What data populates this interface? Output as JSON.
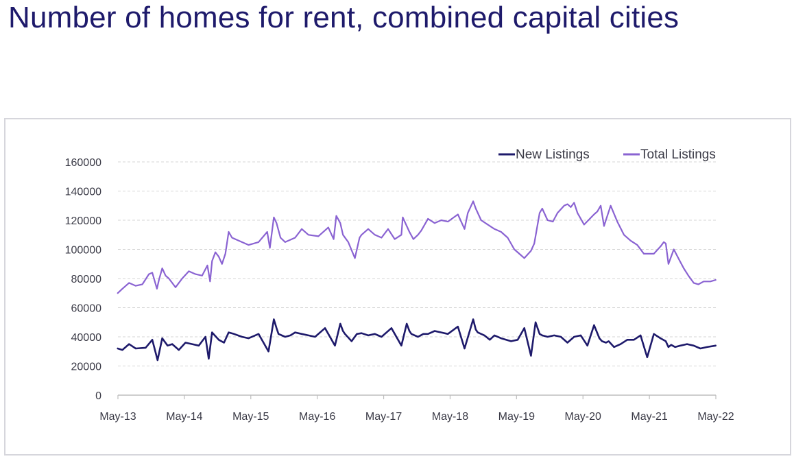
{
  "page": {
    "title": "Number of homes for rent, combined capital cities"
  },
  "colors": {
    "new_listings": "#1e1a6b",
    "total_listings": "#8a63d2",
    "grid": "#d4d4d4",
    "axis": "#bdbdbd",
    "frame": "#d6d6dc"
  },
  "chart_data": {
    "type": "line",
    "title": "Number of homes for rent, combined capital cities",
    "xlabel": "",
    "ylabel": "",
    "ylim": [
      0,
      160000
    ],
    "yticks": [
      0,
      20000,
      40000,
      60000,
      80000,
      100000,
      120000,
      140000,
      160000
    ],
    "x_tick_labels": [
      "May-13",
      "May-14",
      "May-15",
      "May-16",
      "May-17",
      "May-18",
      "May-19",
      "May-20",
      "May-21",
      "May-22"
    ],
    "x_range": [
      2013.333,
      2022.333
    ],
    "legend": {
      "position": "top-right"
    },
    "grid": true,
    "series": [
      {
        "name": "New Listings",
        "x": [
          2013.33,
          2013.4,
          2013.5,
          2013.6,
          2013.75,
          2013.85,
          2013.93,
          2014.0,
          2014.08,
          2014.15,
          2014.25,
          2014.35,
          2014.45,
          2014.55,
          2014.65,
          2014.7,
          2014.75,
          2014.85,
          2014.93,
          2015.0,
          2015.08,
          2015.2,
          2015.3,
          2015.45,
          2015.6,
          2015.68,
          2015.72,
          2015.75,
          2015.85,
          2015.93,
          2016.0,
          2016.1,
          2016.2,
          2016.3,
          2016.45,
          2016.6,
          2016.68,
          2016.72,
          2016.75,
          2016.85,
          2016.93,
          2017.0,
          2017.1,
          2017.2,
          2017.3,
          2017.45,
          2017.6,
          2017.68,
          2017.72,
          2017.75,
          2017.85,
          2017.93,
          2018.0,
          2018.1,
          2018.2,
          2018.3,
          2018.45,
          2018.55,
          2018.68,
          2018.72,
          2018.75,
          2018.85,
          2018.93,
          2019.0,
          2019.1,
          2019.25,
          2019.35,
          2019.45,
          2019.55,
          2019.62,
          2019.68,
          2019.72,
          2019.8,
          2019.9,
          2020.0,
          2020.1,
          2020.2,
          2020.3,
          2020.4,
          2020.5,
          2020.58,
          2020.62,
          2020.68,
          2020.72,
          2020.8,
          2020.9,
          2021.0,
          2021.1,
          2021.2,
          2021.3,
          2021.4,
          2021.5,
          2021.58,
          2021.62,
          2021.66,
          2021.72,
          2021.8,
          2021.9,
          2022.0,
          2022.1,
          2022.2,
          2022.33
        ],
        "values": [
          32000,
          31000,
          35000,
          32000,
          32500,
          38000,
          24000,
          39000,
          34000,
          35000,
          31000,
          36000,
          35000,
          34000,
          40000,
          25000,
          43000,
          38000,
          36000,
          43000,
          42000,
          40000,
          39000,
          42000,
          30000,
          52000,
          46000,
          42000,
          40000,
          41000,
          43000,
          42000,
          41000,
          40000,
          46000,
          34000,
          49000,
          44000,
          42000,
          37000,
          42000,
          42500,
          41000,
          42000,
          40000,
          46000,
          34000,
          49000,
          44000,
          42000,
          40000,
          42000,
          42000,
          44000,
          43000,
          42000,
          47000,
          32000,
          52000,
          45000,
          43000,
          41000,
          38000,
          41000,
          39000,
          37000,
          38000,
          46000,
          27000,
          50000,
          42000,
          41000,
          40000,
          41000,
          40000,
          36000,
          40000,
          41000,
          34000,
          48000,
          39000,
          37000,
          36000,
          37000,
          33000,
          35000,
          38000,
          38000,
          41000,
          26000,
          42000,
          39000,
          37000,
          33000,
          34500,
          33000,
          34000,
          35000,
          34000,
          32000,
          33000,
          34000
        ]
      },
      {
        "name": "Total Listings",
        "x": [
          2013.33,
          2013.4,
          2013.5,
          2013.6,
          2013.7,
          2013.8,
          2013.85,
          2013.92,
          2013.95,
          2014.0,
          2014.05,
          2014.1,
          2014.2,
          2014.3,
          2014.4,
          2014.5,
          2014.6,
          2014.68,
          2014.72,
          2014.75,
          2014.8,
          2014.85,
          2014.9,
          2014.95,
          2015.0,
          2015.05,
          2015.15,
          2015.3,
          2015.45,
          2015.58,
          2015.62,
          2015.68,
          2015.72,
          2015.78,
          2015.85,
          2015.9,
          2016.0,
          2016.1,
          2016.2,
          2016.35,
          2016.5,
          2016.58,
          2016.62,
          2016.68,
          2016.72,
          2016.8,
          2016.9,
          2016.97,
          2017.0,
          2017.1,
          2017.2,
          2017.3,
          2017.4,
          2017.5,
          2017.6,
          2017.62,
          2017.68,
          2017.72,
          2017.78,
          2017.85,
          2017.9,
          2018.0,
          2018.1,
          2018.2,
          2018.3,
          2018.45,
          2018.55,
          2018.6,
          2018.68,
          2018.72,
          2018.8,
          2018.9,
          2019.0,
          2019.1,
          2019.2,
          2019.3,
          2019.4,
          2019.45,
          2019.55,
          2019.6,
          2019.68,
          2019.72,
          2019.8,
          2019.88,
          2019.95,
          2020.05,
          2020.1,
          2020.15,
          2020.2,
          2020.25,
          2020.35,
          2020.5,
          2020.55,
          2020.6,
          2020.65,
          2020.75,
          2020.85,
          2020.95,
          2021.05,
          2021.15,
          2021.25,
          2021.4,
          2021.5,
          2021.55,
          2021.58,
          2021.62,
          2021.7,
          2021.78,
          2021.85,
          2021.92,
          2022.0,
          2022.07,
          2022.15,
          2022.25,
          2022.33
        ],
        "values": [
          70000,
          73000,
          77000,
          75000,
          76000,
          83000,
          84000,
          73000,
          79000,
          87000,
          82000,
          80000,
          74000,
          80000,
          85000,
          83000,
          82000,
          89000,
          78000,
          92000,
          98000,
          95000,
          90000,
          97000,
          112000,
          108000,
          106000,
          103000,
          105000,
          112000,
          101000,
          122000,
          118000,
          108000,
          105000,
          106000,
          108000,
          114000,
          110000,
          109000,
          115000,
          107000,
          123000,
          118000,
          110000,
          105000,
          94000,
          108000,
          110000,
          114000,
          110000,
          108000,
          114000,
          107000,
          110000,
          122000,
          116000,
          112000,
          107000,
          110000,
          113000,
          121000,
          118000,
          120000,
          119000,
          124000,
          114000,
          125000,
          133000,
          128000,
          120000,
          117000,
          114000,
          112000,
          108000,
          100000,
          96000,
          94000,
          99000,
          104000,
          125000,
          128000,
          120000,
          119000,
          125000,
          130000,
          131000,
          129000,
          132000,
          125000,
          117000,
          124000,
          126000,
          130000,
          116000,
          130000,
          119000,
          110000,
          106000,
          103000,
          97000,
          97000,
          102000,
          105000,
          104000,
          90000,
          100000,
          93000,
          87000,
          82000,
          77000,
          76000,
          78000,
          78000,
          79000
        ]
      }
    ]
  }
}
